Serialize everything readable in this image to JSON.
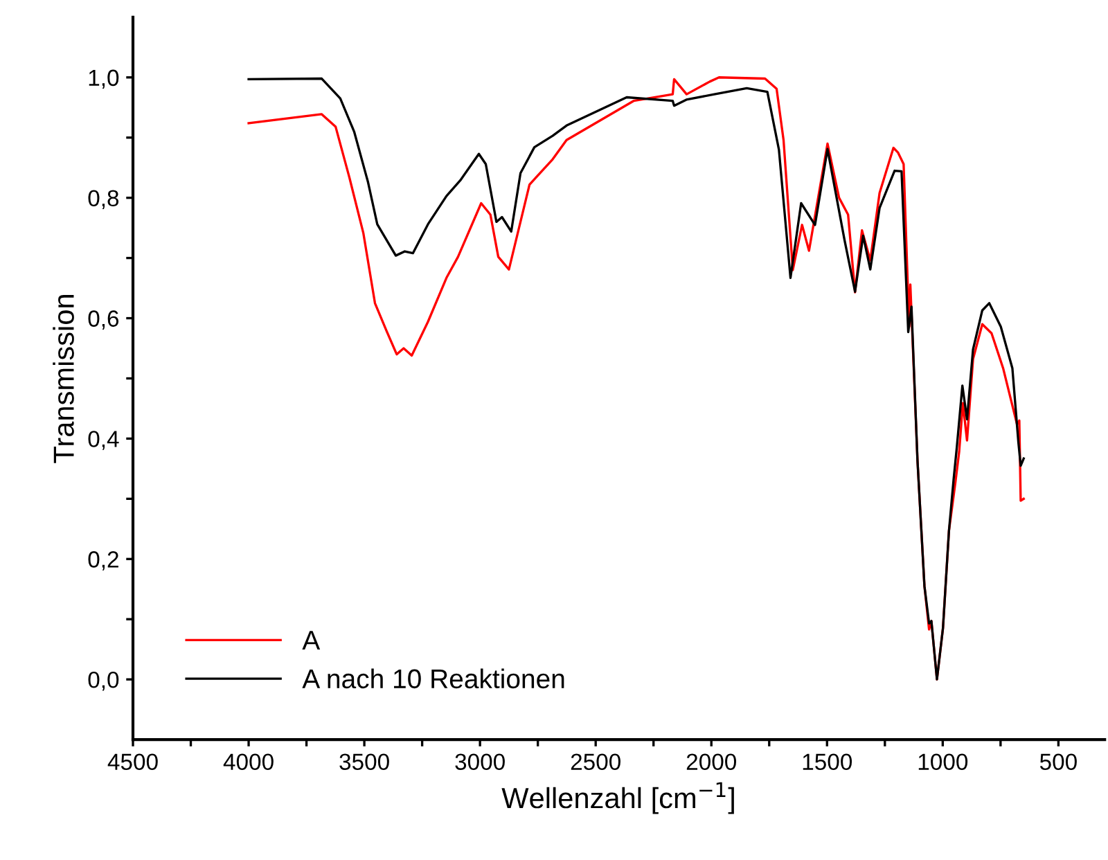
{
  "chart_data": {
    "type": "line",
    "xlabel": "Wellenzahl [cm$^{−1}$]",
    "ylabel": "Transmission",
    "xlim": [
      4500,
      300
    ],
    "ylim": [
      -0.1,
      1.1
    ],
    "xticks": [
      4500,
      {
        "value": 4250,
        "label": null
      },
      4000,
      {
        "value": 3750,
        "label": null
      },
      3500,
      {
        "value": 3250,
        "label": null
      },
      3000,
      {
        "value": 2750,
        "label": null
      },
      2500,
      {
        "value": 2250,
        "label": null
      },
      2000,
      {
        "value": 1750,
        "label": null
      },
      1500,
      {
        "value": 1250,
        "label": null
      },
      1000,
      {
        "value": 750,
        "label": null
      },
      500
    ],
    "yticks": [
      {
        "value": 0,
        "label": "0,0"
      },
      {
        "value": 0.1,
        "label": null
      },
      {
        "value": 0.2,
        "label": "0,2"
      },
      {
        "value": 0.3,
        "label": null
      },
      {
        "value": 0.4,
        "label": "0,4"
      },
      {
        "value": 0.5,
        "label": null
      },
      {
        "value": 0.6,
        "label": "0,6"
      },
      {
        "value": 0.7,
        "label": null
      },
      {
        "value": 0.8,
        "label": "0,8"
      },
      {
        "value": 0.9,
        "label": null
      },
      {
        "value": 1.0,
        "label": "1,0"
      }
    ],
    "legend": "bottom left",
    "grid": false,
    "marker": "none",
    "line_style": "solid",
    "series": [
      {
        "name": "A",
        "color": "#ff0000",
        "x": [
          4000,
          3685,
          3624,
          3564,
          3504,
          3454,
          3404,
          3360,
          3330,
          3295,
          3225,
          3145,
          3095,
          2995,
          2955,
          2921,
          2875,
          2786,
          2686,
          2626,
          2336,
          2167,
          2161,
          2107,
          2007,
          1967,
          1768,
          1718,
          1688,
          1648,
          1608,
          1578,
          1498,
          1448,
          1409,
          1379,
          1349,
          1313,
          1273,
          1213,
          1193,
          1169,
          1145,
          1140,
          1109,
          1079,
          1059,
          1049,
          1025,
          999,
          973,
          945,
          929,
          913,
          895,
          869,
          829,
          789,
          739,
          699,
          679,
          669,
          663,
          650
        ],
        "values": [
          0.924,
          0.939,
          0.918,
          0.833,
          0.741,
          0.625,
          0.579,
          0.54,
          0.55,
          0.538,
          0.594,
          0.667,
          0.702,
          0.791,
          0.772,
          0.702,
          0.681,
          0.822,
          0.864,
          0.896,
          0.961,
          0.972,
          0.997,
          0.972,
          0.993,
          1.0,
          0.998,
          0.981,
          0.896,
          0.68,
          0.755,
          0.712,
          0.89,
          0.8,
          0.772,
          0.643,
          0.746,
          0.696,
          0.808,
          0.883,
          0.875,
          0.856,
          0.586,
          0.656,
          0.363,
          0.155,
          0.083,
          0.097,
          0.0,
          0.085,
          0.247,
          0.328,
          0.378,
          0.459,
          0.397,
          0.532,
          0.59,
          0.575,
          0.517,
          0.455,
          0.424,
          0.43,
          0.297,
          0.3
        ]
      },
      {
        "name": "A nach 10 Reaktionen",
        "color": "#000000",
        "x": [
          4000,
          3684,
          3604,
          3544,
          3484,
          3444,
          3364,
          3325,
          3290,
          3225,
          3145,
          3085,
          3005,
          2975,
          2929,
          2905,
          2865,
          2825,
          2765,
          2686,
          2626,
          2366,
          2167,
          2161,
          2108,
          1987,
          1847,
          1758,
          1708,
          1658,
          1612,
          1552,
          1498,
          1424,
          1379,
          1344,
          1313,
          1273,
          1208,
          1178,
          1149,
          1135,
          1109,
          1079,
          1059,
          1049,
          1025,
          999,
          973,
          953,
          939,
          915,
          895,
          869,
          829,
          799,
          749,
          699,
          673,
          663,
          650
        ],
        "values": [
          0.997,
          0.998,
          0.965,
          0.91,
          0.826,
          0.756,
          0.704,
          0.711,
          0.708,
          0.756,
          0.803,
          0.829,
          0.873,
          0.856,
          0.76,
          0.768,
          0.744,
          0.841,
          0.884,
          0.903,
          0.92,
          0.967,
          0.961,
          0.953,
          0.963,
          0.972,
          0.982,
          0.976,
          0.88,
          0.667,
          0.791,
          0.755,
          0.881,
          0.729,
          0.644,
          0.737,
          0.681,
          0.783,
          0.845,
          0.844,
          0.577,
          0.619,
          0.363,
          0.155,
          0.093,
          0.097,
          0.0,
          0.085,
          0.247,
          0.332,
          0.386,
          0.488,
          0.432,
          0.548,
          0.613,
          0.625,
          0.586,
          0.517,
          0.394,
          0.355,
          0.367
        ]
      }
    ]
  }
}
